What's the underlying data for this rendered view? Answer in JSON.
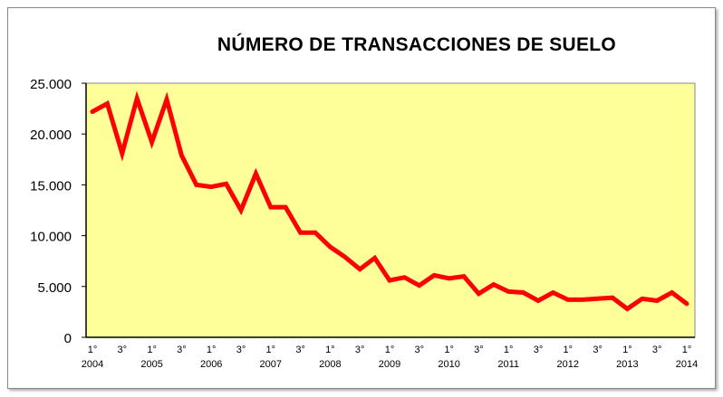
{
  "chart_data": {
    "type": "line",
    "title": "NÚMERO DE TRANSACCIONES DE SUELO",
    "xlabel": "",
    "ylabel": "",
    "ylim": [
      0,
      25000
    ],
    "yticks": [
      0,
      5000,
      10000,
      15000,
      20000,
      25000
    ],
    "ytick_labels": [
      "0",
      "5.000",
      "10.000",
      "15.000",
      "20.000",
      "25.000"
    ],
    "x_quarter_labels": [
      "1°",
      "3°",
      "1°",
      "3°",
      "1°",
      "3°",
      "1°",
      "3°",
      "1°",
      "3°",
      "1°",
      "3°",
      "1°",
      "3°",
      "1°",
      "3°",
      "1°",
      "3°",
      "1°",
      "3°",
      "1°"
    ],
    "x_year_labels": [
      "2004",
      "2005",
      "2006",
      "2007",
      "2008",
      "2009",
      "2010",
      "2011",
      "2012",
      "2013",
      "2014"
    ],
    "grid": false,
    "background_color": "#ffff99",
    "series": [
      {
        "name": "Número de transacciones de suelo",
        "color": "#ff0000",
        "values": [
          22200,
          23000,
          18100,
          23500,
          19200,
          23400,
          17900,
          15000,
          14800,
          15100,
          12500,
          16100,
          12800,
          12800,
          10300,
          10300,
          8900,
          7900,
          6700,
          7800,
          5600,
          5900,
          5100,
          6100,
          5800,
          6000,
          4300,
          5200,
          4500,
          4400,
          3600,
          4400,
          3700,
          3700,
          3800,
          3900,
          2800,
          3800,
          3600,
          4400,
          3300
        ]
      }
    ]
  }
}
